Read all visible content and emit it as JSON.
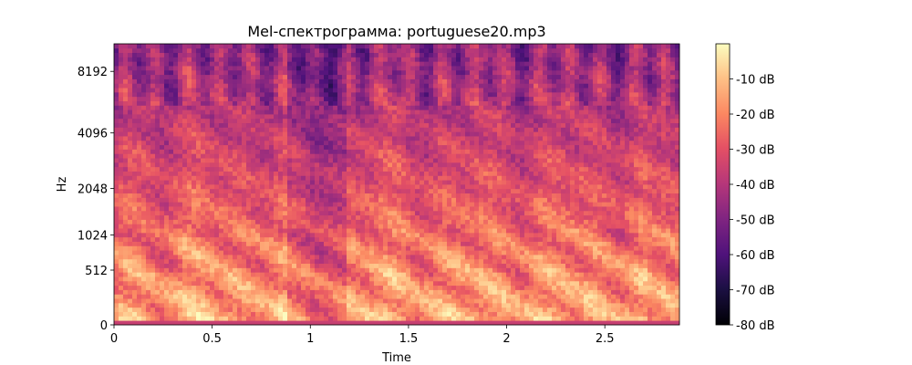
{
  "chart_data": {
    "type": "heatmap",
    "title": "Mel-спектрограмма: portuguese20.mp3",
    "xlabel": "Time",
    "ylabel": "Hz",
    "xlim": [
      0,
      2.88
    ],
    "y_scale": "mel",
    "x_ticks": [
      {
        "value": 0,
        "label": "0"
      },
      {
        "value": 0.5,
        "label": "0.5"
      },
      {
        "value": 1,
        "label": "1"
      },
      {
        "value": 1.5,
        "label": "1.5"
      },
      {
        "value": 2,
        "label": "2"
      },
      {
        "value": 2.5,
        "label": "2.5"
      }
    ],
    "y_ticks": [
      {
        "value": 0,
        "label": "0"
      },
      {
        "value": 512,
        "label": "512"
      },
      {
        "value": 1024,
        "label": "1024"
      },
      {
        "value": 2048,
        "label": "2048"
      },
      {
        "value": 4096,
        "label": "4096"
      },
      {
        "value": 8192,
        "label": "8192"
      }
    ],
    "colormap": "magma",
    "colorbar": {
      "range_db": [
        -80,
        0
      ],
      "ticks": [
        {
          "value": -10,
          "label": "-10 dB"
        },
        {
          "value": -20,
          "label": "-20 dB"
        },
        {
          "value": -30,
          "label": "-30 dB"
        },
        {
          "value": -40,
          "label": "-40 dB"
        },
        {
          "value": -50,
          "label": "-50 dB"
        },
        {
          "value": -60,
          "label": "-60 dB"
        },
        {
          "value": -70,
          "label": "-70 dB"
        },
        {
          "value": -80,
          "label": "-80 dB"
        }
      ]
    },
    "grid": false
  }
}
